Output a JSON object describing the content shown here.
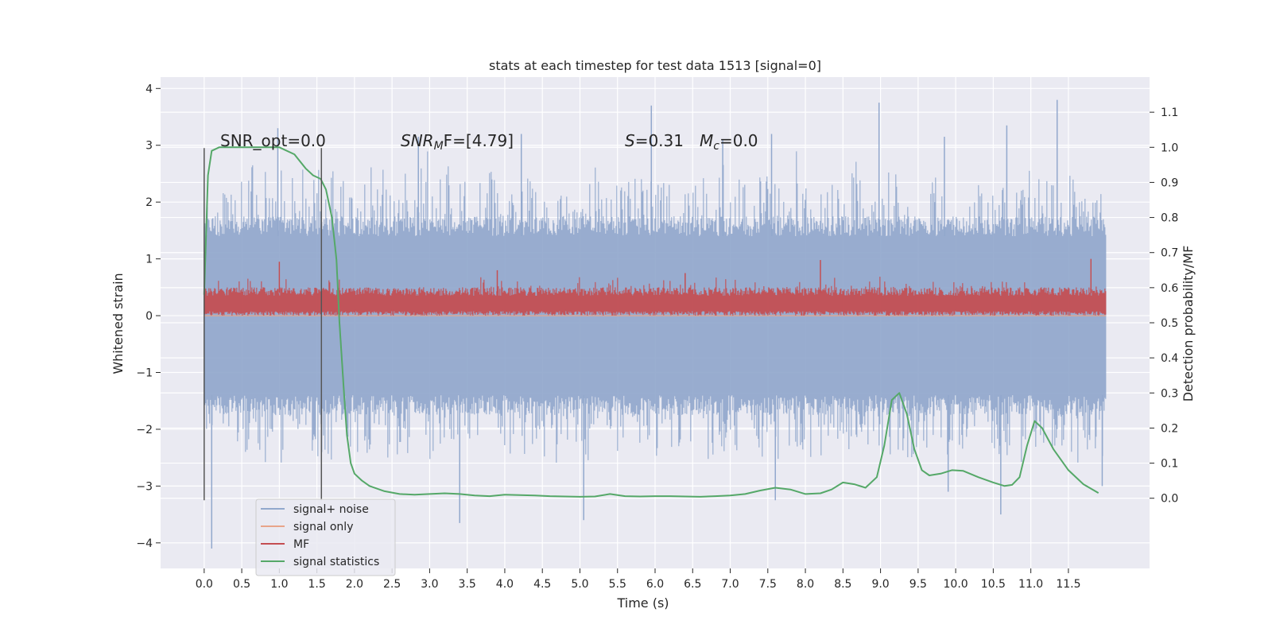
{
  "chart_data": {
    "type": "line",
    "title": "stats at each timestep for test data 1513 [signal=0]",
    "xlabel": "Time (s)",
    "ylabel": "Whitened strain",
    "y2label": "Detection probability/MF",
    "xlim": [
      -0.58,
      12.58
    ],
    "ylim": [
      -4.45,
      4.2
    ],
    "y2lim": [
      -0.2,
      1.2
    ],
    "x_ticks": [
      "0.0",
      "0.5",
      "1.0",
      "1.5",
      "2.0",
      "2.5",
      "3.0",
      "3.5",
      "4.0",
      "4.5",
      "5.0",
      "5.5",
      "6.0",
      "6.5",
      "7.0",
      "7.5",
      "8.0",
      "8.5",
      "9.0",
      "9.5",
      "10.0",
      "10.5",
      "11.0",
      "11.5"
    ],
    "y_ticks": [
      "4",
      "3",
      "2",
      "1",
      "0",
      "−1",
      "−2",
      "−3",
      "−4"
    ],
    "y2_ticks": [
      "1.1",
      "1.0",
      "0.9",
      "0.8",
      "0.7",
      "0.6",
      "0.5",
      "0.4",
      "0.3",
      "0.2",
      "0.1",
      "0.0"
    ],
    "grid": true,
    "legend_position": "lower-left",
    "annotations": {
      "snr_opt": "SNR_opt=0.0",
      "snr_mf_main": "SNR",
      "snr_mf_sub": "M",
      "snr_mf_rest": "F=[4.79]",
      "s_var": "S",
      "s_val": "=0.31",
      "mc_var": "M",
      "mc_sub": "c",
      "mc_val": "=0.0"
    },
    "markers": [
      {
        "x": 0.0,
        "y": [
          -3.25,
          2.95
        ]
      },
      {
        "x": 1.56,
        "y": [
          -3.25,
          2.95
        ]
      }
    ],
    "series": [
      {
        "name": "signal+ noise",
        "color": "#92a8cd",
        "axis": "left",
        "band": {
          "x_start": 0.0,
          "x_end": 12.0,
          "core_low": -1.4,
          "core_high": 1.4,
          "spikes_up": [
            [
              0.98,
              3.3
            ],
            [
              5.95,
              3.7
            ],
            [
              8.98,
              3.75
            ],
            [
              11.35,
              3.8
            ],
            [
              10.68,
              3.35
            ],
            [
              2.85,
              3.15
            ],
            [
              4.22,
              3.2
            ],
            [
              7.55,
              3.2
            ],
            [
              9.85,
              3.15
            ],
            [
              6.9,
              3.1
            ]
          ],
          "spikes_down": [
            [
              0.1,
              -4.1
            ],
            [
              3.4,
              -3.65
            ],
            [
              5.05,
              -3.6
            ],
            [
              10.6,
              -3.5
            ],
            [
              7.6,
              -3.25
            ],
            [
              9.9,
              -3.1
            ],
            [
              11.95,
              -3.0
            ]
          ]
        }
      },
      {
        "name": "signal only",
        "color": "#e8a58a",
        "axis": "left",
        "x": [
          0.0,
          12.0
        ],
        "y": [
          0.0,
          0.0
        ]
      },
      {
        "name": "MF",
        "color": "#c44e52",
        "axis": "left",
        "band": {
          "x_start": 0.0,
          "x_end": 12.0,
          "low": 0.0,
          "high": 0.5,
          "spikes_up": [
            [
              1.0,
              0.95
            ],
            [
              8.2,
              0.98
            ],
            [
              11.8,
              1.0
            ],
            [
              3.9,
              0.8
            ],
            [
              6.4,
              0.75
            ]
          ]
        }
      },
      {
        "name": "signal statistics",
        "color": "#55a868",
        "axis": "right",
        "x": [
          0.0,
          0.05,
          0.1,
          0.2,
          0.4,
          0.7,
          1.0,
          1.2,
          1.35,
          1.45,
          1.55,
          1.62,
          1.7,
          1.76,
          1.8,
          1.86,
          1.9,
          1.95,
          2.0,
          2.1,
          2.2,
          2.4,
          2.6,
          2.8,
          3.0,
          3.2,
          3.4,
          3.6,
          3.8,
          4.0,
          4.2,
          4.4,
          4.6,
          4.8,
          5.0,
          5.2,
          5.4,
          5.6,
          5.8,
          6.0,
          6.2,
          6.4,
          6.6,
          6.8,
          7.0,
          7.2,
          7.4,
          7.6,
          7.8,
          8.0,
          8.2,
          8.35,
          8.5,
          8.65,
          8.8,
          8.95,
          9.05,
          9.15,
          9.25,
          9.35,
          9.45,
          9.55,
          9.65,
          9.8,
          9.95,
          10.1,
          10.3,
          10.5,
          10.65,
          10.75,
          10.85,
          10.95,
          11.05,
          11.15,
          11.3,
          11.5,
          11.7,
          11.9
        ],
        "y": [
          0.58,
          0.92,
          0.99,
          1.0,
          1.0,
          1.0,
          1.0,
          0.98,
          0.94,
          0.92,
          0.91,
          0.88,
          0.8,
          0.68,
          0.5,
          0.3,
          0.18,
          0.1,
          0.07,
          0.05,
          0.035,
          0.02,
          0.012,
          0.01,
          0.012,
          0.014,
          0.012,
          0.008,
          0.006,
          0.01,
          0.009,
          0.008,
          0.006,
          0.005,
          0.004,
          0.005,
          0.012,
          0.006,
          0.005,
          0.006,
          0.006,
          0.005,
          0.004,
          0.006,
          0.008,
          0.012,
          0.022,
          0.03,
          0.025,
          0.012,
          0.014,
          0.025,
          0.045,
          0.04,
          0.03,
          0.06,
          0.15,
          0.28,
          0.3,
          0.24,
          0.14,
          0.08,
          0.065,
          0.07,
          0.08,
          0.078,
          0.06,
          0.045,
          0.035,
          0.038,
          0.06,
          0.15,
          0.22,
          0.2,
          0.14,
          0.08,
          0.04,
          0.015
        ]
      }
    ]
  }
}
